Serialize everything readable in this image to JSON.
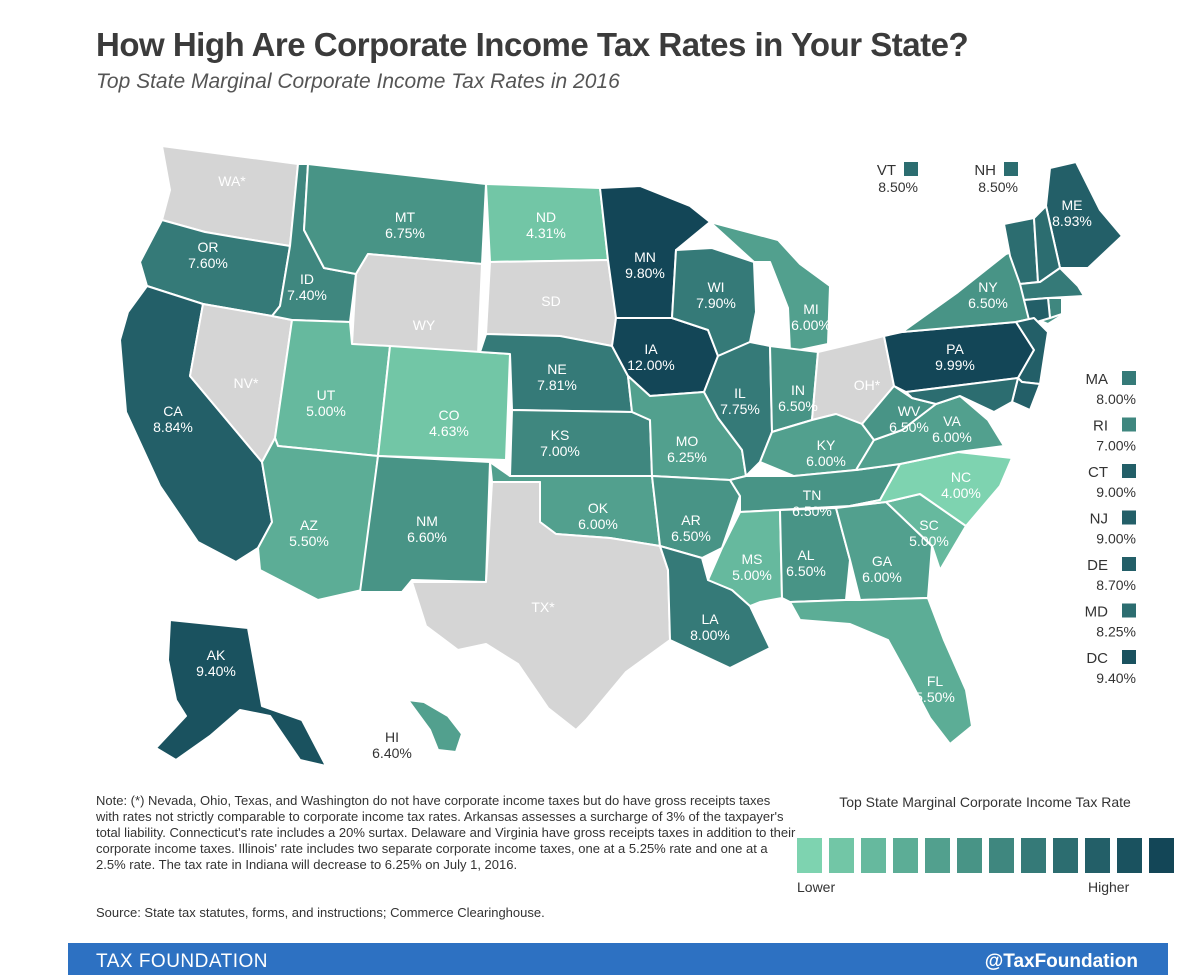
{
  "title": "How High Are Corporate Income Tax Rates in Your State?",
  "subtitle": "Top State Marginal Corporate Income Tax Rates in 2016",
  "colors": {
    "no_tax": "#d5d5d5",
    "scale": [
      "#7ed3b0",
      "#72c6a6",
      "#66b99e",
      "#5cad96",
      "#52a08e",
      "#489486",
      "#3f877f",
      "#357a78",
      "#2c6d70",
      "#235f68",
      "#1a525f",
      "#134657"
    ]
  },
  "chart_data": {
    "type": "choropleth",
    "title": "How High Are Corporate Income Tax Rates in Your State?",
    "subtitle": "Top State Marginal Corporate Income Tax Rates in 2016",
    "unit": "%",
    "states": [
      {
        "abbr": "WA*",
        "rate": null,
        "label": ""
      },
      {
        "abbr": "OR",
        "rate": 7.6,
        "label": "7.60%"
      },
      {
        "abbr": "CA",
        "rate": 8.84,
        "label": "8.84%"
      },
      {
        "abbr": "NV*",
        "rate": null,
        "label": ""
      },
      {
        "abbr": "ID",
        "rate": 7.4,
        "label": "7.40%"
      },
      {
        "abbr": "MT",
        "rate": 6.75,
        "label": "6.75%"
      },
      {
        "abbr": "WY",
        "rate": null,
        "label": ""
      },
      {
        "abbr": "UT",
        "rate": 5.0,
        "label": "5.00%"
      },
      {
        "abbr": "AZ",
        "rate": 5.5,
        "label": "5.50%"
      },
      {
        "abbr": "CO",
        "rate": 4.63,
        "label": "4.63%"
      },
      {
        "abbr": "NM",
        "rate": 6.6,
        "label": "6.60%"
      },
      {
        "abbr": "ND",
        "rate": 4.31,
        "label": "4.31%"
      },
      {
        "abbr": "SD",
        "rate": null,
        "label": ""
      },
      {
        "abbr": "NE",
        "rate": 7.81,
        "label": "7.81%"
      },
      {
        "abbr": "KS",
        "rate": 7.0,
        "label": "7.00%"
      },
      {
        "abbr": "OK",
        "rate": 6.0,
        "label": "6.00%"
      },
      {
        "abbr": "TX*",
        "rate": null,
        "label": ""
      },
      {
        "abbr": "MN",
        "rate": 9.8,
        "label": "9.80%"
      },
      {
        "abbr": "IA",
        "rate": 12.0,
        "label": "12.00%"
      },
      {
        "abbr": "MO",
        "rate": 6.25,
        "label": "6.25%"
      },
      {
        "abbr": "AR",
        "rate": 6.5,
        "label": "6.50%"
      },
      {
        "abbr": "LA",
        "rate": 8.0,
        "label": "8.00%"
      },
      {
        "abbr": "WI",
        "rate": 7.9,
        "label": "7.90%"
      },
      {
        "abbr": "IL",
        "rate": 7.75,
        "label": "7.75%"
      },
      {
        "abbr": "MI",
        "rate": 6.0,
        "label": "6.00%"
      },
      {
        "abbr": "IN",
        "rate": 6.5,
        "label": "6.50%"
      },
      {
        "abbr": "OH*",
        "rate": null,
        "label": ""
      },
      {
        "abbr": "KY",
        "rate": 6.0,
        "label": "6.00%"
      },
      {
        "abbr": "TN",
        "rate": 6.5,
        "label": "6.50%"
      },
      {
        "abbr": "MS",
        "rate": 5.0,
        "label": "5.00%"
      },
      {
        "abbr": "AL",
        "rate": 6.5,
        "label": "6.50%"
      },
      {
        "abbr": "GA",
        "rate": 6.0,
        "label": "6.00%"
      },
      {
        "abbr": "FL",
        "rate": 5.5,
        "label": "5.50%"
      },
      {
        "abbr": "SC",
        "rate": 5.0,
        "label": "5.00%"
      },
      {
        "abbr": "NC",
        "rate": 4.0,
        "label": "4.00%"
      },
      {
        "abbr": "VA",
        "rate": 6.0,
        "label": "6.00%"
      },
      {
        "abbr": "WV",
        "rate": 6.5,
        "label": "6.50%"
      },
      {
        "abbr": "PA",
        "rate": 9.99,
        "label": "9.99%"
      },
      {
        "abbr": "NY",
        "rate": 6.5,
        "label": "6.50%"
      },
      {
        "abbr": "ME",
        "rate": 8.93,
        "label": "8.93%"
      },
      {
        "abbr": "VT",
        "rate": 8.5,
        "label": "8.50%"
      },
      {
        "abbr": "NH",
        "rate": 8.5,
        "label": "8.50%"
      },
      {
        "abbr": "MA",
        "rate": 8.0,
        "label": "8.00%"
      },
      {
        "abbr": "RI",
        "rate": 7.0,
        "label": "7.00%"
      },
      {
        "abbr": "CT",
        "rate": 9.0,
        "label": "9.00%"
      },
      {
        "abbr": "NJ",
        "rate": 9.0,
        "label": "9.00%"
      },
      {
        "abbr": "DE",
        "rate": 8.7,
        "label": "8.70%"
      },
      {
        "abbr": "MD",
        "rate": 8.25,
        "label": "8.25%"
      },
      {
        "abbr": "DC",
        "rate": 9.4,
        "label": "9.40%"
      },
      {
        "abbr": "AK",
        "rate": 9.4,
        "label": "9.40%"
      },
      {
        "abbr": "HI",
        "rate": 6.4,
        "label": "6.40%"
      }
    ],
    "legend": {
      "title": "Top State Marginal Corporate Income Tax Rate",
      "low_label": "Lower",
      "high_label": "Higher",
      "steps": 12
    }
  },
  "note": "Note: (*) Nevada, Ohio, Texas, and Washington do not have corporate income taxes but do have gross receipts taxes with rates not strictly comparable to corporate income tax rates. Arkansas assesses a surcharge of 3% of the taxpayer's total liability. Connecticut's rate includes a 20% surtax. Delaware and Virginia have gross receipts taxes in addition to their corporate income taxes. Illinois' rate includes two separate corporate income taxes, one at a 5.25% rate and one at a 2.5% rate. The tax rate in Indiana will decrease to 6.25% on July 1, 2016.",
  "source": "Source: State tax statutes, forms, and instructions; Commerce Clearinghouse.",
  "footer": {
    "brand": "TAX FOUNDATION",
    "handle": "@TaxFoundation"
  }
}
